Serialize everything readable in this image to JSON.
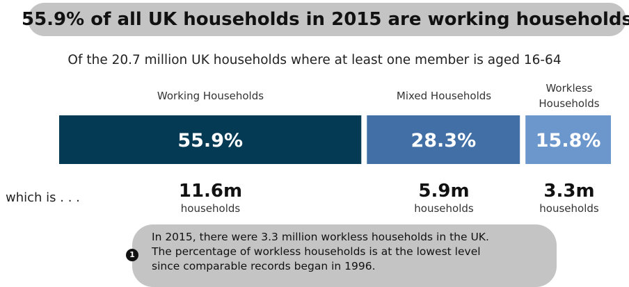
{
  "title": "55.9% of all UK households in 2015 are working households",
  "subtitle": "Of the 20.7 million UK households where at least one member is aged 16-64",
  "row_label": "which is . . .",
  "chart_data": {
    "type": "bar",
    "orientation": "horizontal-stacked",
    "categories": [
      "Working Households",
      "Mixed Households",
      "Workless Households"
    ],
    "values": [
      55.9,
      28.3,
      15.8
    ],
    "value_labels": [
      "55.9%",
      "28.3%",
      "15.8%"
    ],
    "households": [
      "11.6m",
      "5.9m",
      "3.3m"
    ],
    "households_unit": "households",
    "colors": [
      "#053a55",
      "#4270a6",
      "#6c97cc"
    ],
    "title": "55.9% of all UK households in 2015 are working households",
    "subtitle": "Of the 20.7 million UK households where at least one member is aged 16-64"
  },
  "note": {
    "badge": "1",
    "lines": [
      "In 2015, there were 3.3 million workless households in the UK.",
      "The percentage of workless households is at the lowest level",
      "since comparable records began in 1996."
    ]
  }
}
